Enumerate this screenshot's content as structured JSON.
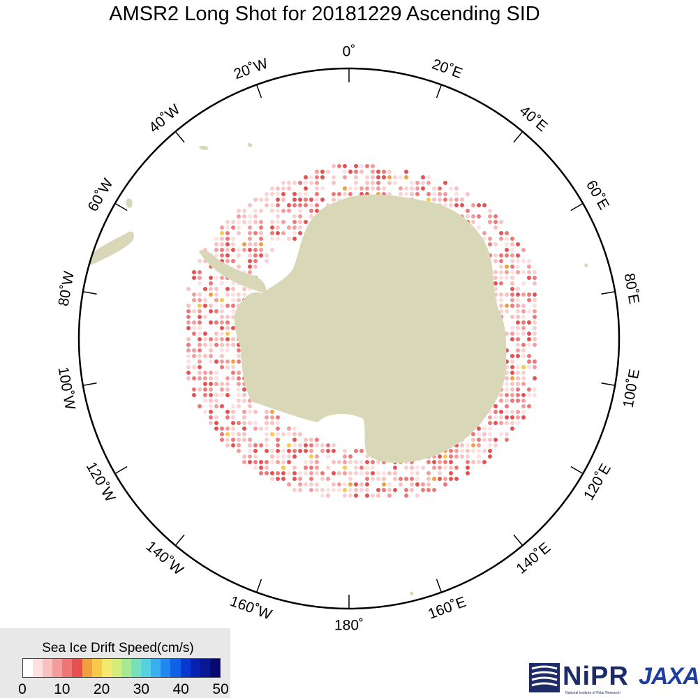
{
  "title": "AMSR2 Long Shot for 20181229 Ascending SID",
  "map": {
    "projection": "south-polar-stereographic",
    "longitude_labels": [
      {
        "lon": 0,
        "text": "0˚"
      },
      {
        "lon": 20,
        "text": "20˚E"
      },
      {
        "lon": 40,
        "text": "40˚E"
      },
      {
        "lon": 60,
        "text": "60˚E"
      },
      {
        "lon": 80,
        "text": "80˚E"
      },
      {
        "lon": 100,
        "text": "100˚E"
      },
      {
        "lon": 120,
        "text": "120˚E"
      },
      {
        "lon": 140,
        "text": "140˚E"
      },
      {
        "lon": 160,
        "text": "160˚E"
      },
      {
        "lon": 180,
        "text": "180˚"
      },
      {
        "lon": -160,
        "text": "160˚W"
      },
      {
        "lon": -140,
        "text": "140˚W"
      },
      {
        "lon": -120,
        "text": "120˚W"
      },
      {
        "lon": -100,
        "text": "100˚W"
      },
      {
        "lon": -80,
        "text": "80˚W"
      },
      {
        "lon": -60,
        "text": "60˚W"
      },
      {
        "lon": -40,
        "text": "40˚W"
      },
      {
        "lon": -20,
        "text": "20˚W"
      }
    ],
    "land_color": "#d8d8b8",
    "ocean_color": "#ffffff"
  },
  "legend": {
    "title": "Sea Ice Drift Speed(cm/s)",
    "unit": "cm/s",
    "range": [
      0,
      50
    ],
    "ticks": [
      "0",
      "10",
      "20",
      "30",
      "40",
      "50"
    ],
    "colors": [
      "#ffffff",
      "#fde0e0",
      "#f9c0c0",
      "#f49c9c",
      "#ee7676",
      "#e65050",
      "#f0a040",
      "#f8c848",
      "#f4e870",
      "#d6ec78",
      "#a8e890",
      "#78e0b8",
      "#58d0e0",
      "#38b0f0",
      "#2088f0",
      "#1060e8",
      "#0838d0",
      "#0820b0",
      "#081890",
      "#080870"
    ]
  },
  "logos": {
    "nipr": "NiPR",
    "nipr_sub": "National Institute of Polar Research",
    "jaxa": "JAXA"
  }
}
